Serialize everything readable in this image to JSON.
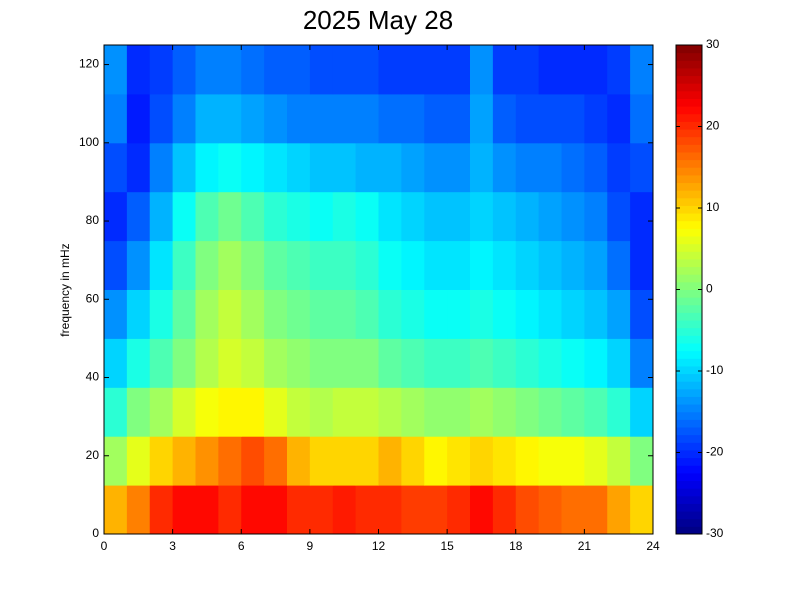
{
  "chart_data": {
    "type": "heatmap",
    "title": "2025 May 28",
    "ylabel": "frequency in mHz",
    "colormap": "jet",
    "xbins": [
      0,
      1,
      2,
      3,
      4,
      5,
      6,
      7,
      8,
      9,
      10,
      11,
      12,
      13,
      14,
      15,
      16,
      17,
      18,
      19,
      20,
      21,
      22,
      23,
      24
    ],
    "ybins": [
      0,
      12.5,
      25,
      37.5,
      50,
      62.5,
      75,
      87.5,
      100,
      112.5,
      125
    ],
    "values": [
      [
        12,
        15,
        20,
        22,
        22,
        20,
        22,
        22,
        20,
        20,
        21,
        20,
        20,
        19,
        19,
        20,
        22,
        20,
        18,
        17,
        16,
        16,
        13,
        10
      ],
      [
        2,
        6,
        10,
        12,
        14,
        16,
        18,
        16,
        12,
        10,
        10,
        10,
        12,
        10,
        8,
        9,
        10,
        9,
        8,
        7,
        7,
        6,
        4,
        0
      ],
      [
        -5,
        0,
        2,
        5,
        7,
        8,
        8,
        6,
        4,
        3,
        4,
        4,
        3,
        2,
        1,
        1,
        2,
        1,
        0,
        -1,
        -2,
        -3,
        -5,
        -10
      ],
      [
        -10,
        -6,
        -3,
        0,
        3,
        5,
        4,
        2,
        1,
        0,
        0,
        0,
        -2,
        -3,
        -4,
        -4,
        -3,
        -4,
        -5,
        -6,
        -7,
        -8,
        -10,
        -15
      ],
      [
        -14,
        -10,
        -6,
        -2,
        2,
        4,
        2,
        0,
        -1,
        -2,
        -2,
        -3,
        -5,
        -6,
        -7,
        -7,
        -6,
        -7,
        -8,
        -9,
        -10,
        -11,
        -13,
        -18
      ],
      [
        -18,
        -14,
        -9,
        -4,
        0,
        2,
        0,
        -2,
        -3,
        -4,
        -4,
        -5,
        -7,
        -8,
        -9,
        -9,
        -8,
        -9,
        -10,
        -11,
        -12,
        -13,
        -16,
        -20
      ],
      [
        -20,
        -17,
        -12,
        -7,
        -3,
        -1,
        -3,
        -5,
        -6,
        -7,
        -6,
        -7,
        -9,
        -10,
        -11,
        -11,
        -10,
        -11,
        -12,
        -13,
        -14,
        -15,
        -18,
        -20
      ],
      [
        -18,
        -20,
        -15,
        -11,
        -8,
        -7,
        -8,
        -9,
        -10,
        -11,
        -11,
        -12,
        -12,
        -13,
        -14,
        -14,
        -12,
        -14,
        -15,
        -15,
        -16,
        -17,
        -19,
        -18
      ],
      [
        -15,
        -21,
        -18,
        -15,
        -12,
        -12,
        -13,
        -14,
        -15,
        -15,
        -15,
        -15,
        -16,
        -16,
        -17,
        -17,
        -13,
        -17,
        -18,
        -18,
        -18,
        -19,
        -20,
        -16
      ],
      [
        -14,
        -20,
        -19,
        -17,
        -15,
        -15,
        -16,
        -17,
        -17,
        -18,
        -18,
        -18,
        -19,
        -19,
        -19,
        -19,
        -14,
        -19,
        -19,
        -20,
        -20,
        -20,
        -19,
        -15
      ]
    ],
    "xlim": [
      0,
      24
    ],
    "xticks": [
      0,
      3,
      6,
      9,
      12,
      15,
      18,
      21,
      24
    ],
    "ylim": [
      0,
      125
    ],
    "yticks": [
      0,
      20,
      40,
      60,
      80,
      100,
      120
    ],
    "clim": [
      -30,
      30
    ],
    "cticks": [
      -30,
      -20,
      -10,
      0,
      10,
      20,
      30
    ]
  }
}
